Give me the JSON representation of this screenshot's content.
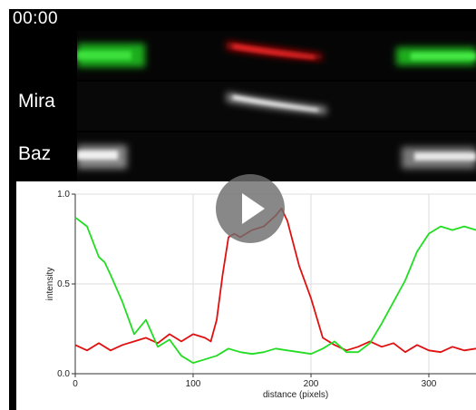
{
  "video": {
    "timestamp": "00:00",
    "play_icon": "play-icon",
    "channels": [
      {
        "id": "merge",
        "label": ""
      },
      {
        "id": "mira",
        "label": "Mira"
      },
      {
        "id": "baz",
        "label": "Baz"
      }
    ],
    "colors": {
      "background": "#000000",
      "text": "#ffffff",
      "play_overlay": "#6e6e6e"
    }
  },
  "chart_data": {
    "type": "line",
    "title": "",
    "xlabel": "distance (pixels)",
    "ylabel": "intensity",
    "xlim": [
      0,
      340
    ],
    "ylim": [
      0,
      1
    ],
    "x_ticks": [
      0,
      100,
      200,
      300
    ],
    "y_ticks": [
      0.0,
      0.5,
      1.0
    ],
    "x_tick_labels": [
      "0",
      "100",
      "200",
      "300"
    ],
    "y_tick_labels": [
      "0.0",
      "0.5",
      "1.0"
    ],
    "grid": true,
    "legend": "none",
    "series": [
      {
        "color": "#e01010",
        "x": [
          0,
          10,
          20,
          30,
          40,
          50,
          60,
          70,
          80,
          90,
          100,
          110,
          115,
          120,
          125,
          130,
          135,
          140,
          150,
          160,
          170,
          175,
          180,
          190,
          200,
          210,
          220,
          230,
          240,
          250,
          260,
          270,
          280,
          290,
          300,
          310,
          320,
          330,
          340
        ],
        "y": [
          0.16,
          0.13,
          0.17,
          0.13,
          0.16,
          0.18,
          0.2,
          0.17,
          0.22,
          0.18,
          0.22,
          0.2,
          0.18,
          0.3,
          0.55,
          0.76,
          0.78,
          0.76,
          0.8,
          0.82,
          0.88,
          0.92,
          0.85,
          0.6,
          0.42,
          0.2,
          0.16,
          0.13,
          0.15,
          0.18,
          0.15,
          0.17,
          0.12,
          0.16,
          0.13,
          0.12,
          0.15,
          0.13,
          0.14
        ]
      },
      {
        "color": "#22dd22",
        "x": [
          0,
          10,
          20,
          25,
          30,
          40,
          50,
          60,
          70,
          80,
          90,
          100,
          110,
          120,
          130,
          140,
          150,
          160,
          170,
          180,
          190,
          200,
          210,
          220,
          230,
          240,
          250,
          260,
          270,
          280,
          290,
          300,
          310,
          320,
          330,
          340
        ],
        "y": [
          0.87,
          0.82,
          0.65,
          0.62,
          0.55,
          0.4,
          0.22,
          0.3,
          0.15,
          0.19,
          0.1,
          0.06,
          0.08,
          0.1,
          0.14,
          0.12,
          0.11,
          0.12,
          0.14,
          0.13,
          0.12,
          0.11,
          0.14,
          0.18,
          0.12,
          0.12,
          0.17,
          0.28,
          0.4,
          0.52,
          0.68,
          0.78,
          0.82,
          0.8,
          0.82,
          0.8
        ]
      }
    ]
  }
}
